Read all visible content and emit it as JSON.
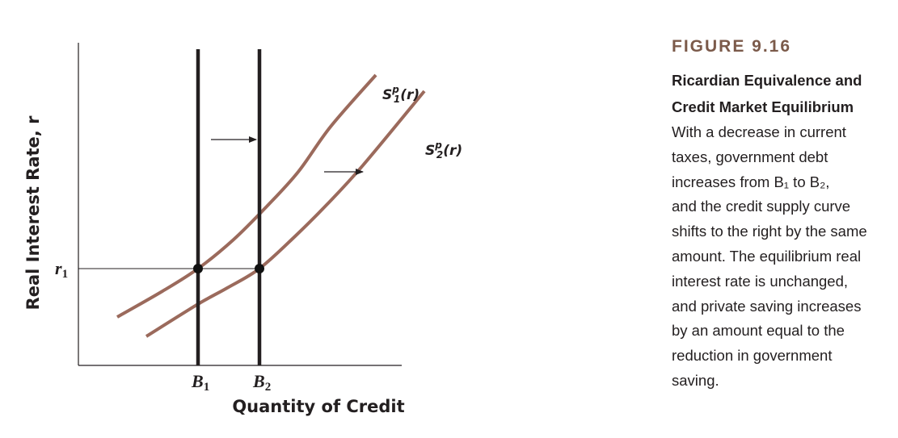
{
  "chart_data": {
    "type": "line",
    "title": "",
    "xlabel": "Quantity of Credit",
    "ylabel": "Real Interest Rate, r",
    "xlim": [
      0,
      10
    ],
    "ylim": [
      0,
      10
    ],
    "x_ticks": [
      {
        "label": "B",
        "sub": "1",
        "value": 3.7
      },
      {
        "label": "B",
        "sub": "2",
        "value": 5.6
      }
    ],
    "y_ticks": [
      {
        "label": "r",
        "sub": "1",
        "value": 3.0
      }
    ],
    "series": [
      {
        "name": "S1p(r)",
        "label_main": "S",
        "label_sup": "p",
        "label_sub": "1",
        "label_tail": "(r)",
        "x": [
          1.2,
          2.6,
          3.7,
          4.8,
          5.8,
          6.8,
          7.8,
          9.2
        ],
        "y": [
          1.5,
          2.3,
          3.0,
          3.9,
          4.9,
          6.0,
          7.4,
          9.0
        ]
      },
      {
        "name": "S2p(r)",
        "label_main": "S",
        "label_sup": "p",
        "label_sub": "2",
        "label_tail": "(r)",
        "x": [
          2.1,
          3.7,
          4.6,
          5.6,
          6.7,
          7.7,
          8.8,
          10.7
        ],
        "y": [
          0.9,
          1.9,
          2.4,
          3.0,
          4.0,
          5.0,
          6.2,
          8.5
        ]
      },
      {
        "name": "B1",
        "x": [
          3.7,
          3.7
        ],
        "y": [
          0,
          9.8
        ]
      },
      {
        "name": "B2",
        "x": [
          5.6,
          5.6
        ],
        "y": [
          0,
          9.8
        ]
      }
    ],
    "equilibria": [
      {
        "x": 3.7,
        "y": 3.0
      },
      {
        "x": 5.6,
        "y": 3.0
      }
    ],
    "shift_arrows": [
      {
        "from": [
          4.1,
          7.0
        ],
        "to": [
          5.5,
          7.0
        ]
      },
      {
        "from": [
          7.6,
          6.0
        ],
        "to": [
          8.8,
          6.0
        ]
      }
    ],
    "grid": false,
    "legend": "none",
    "colors": {
      "supply_curves": "#9b6a5c",
      "vertical_lines": "#231f20",
      "axes": "#231f20"
    }
  },
  "caption": {
    "figure_number": "FIGURE 9.16",
    "title_lines": [
      "Ricardian Equivalence and",
      "Credit Market Equilibrium"
    ],
    "body_lines": [
      "With a decrease in current",
      "taxes, government debt",
      "increases from B₁ to B₂,",
      "and the credit supply curve",
      "shifts to the right by the same",
      "amount. The equilibrium real",
      "interest rate is unchanged,",
      "and private saving increases",
      "by an amount equal to the",
      "reduction in government",
      "saving."
    ]
  }
}
